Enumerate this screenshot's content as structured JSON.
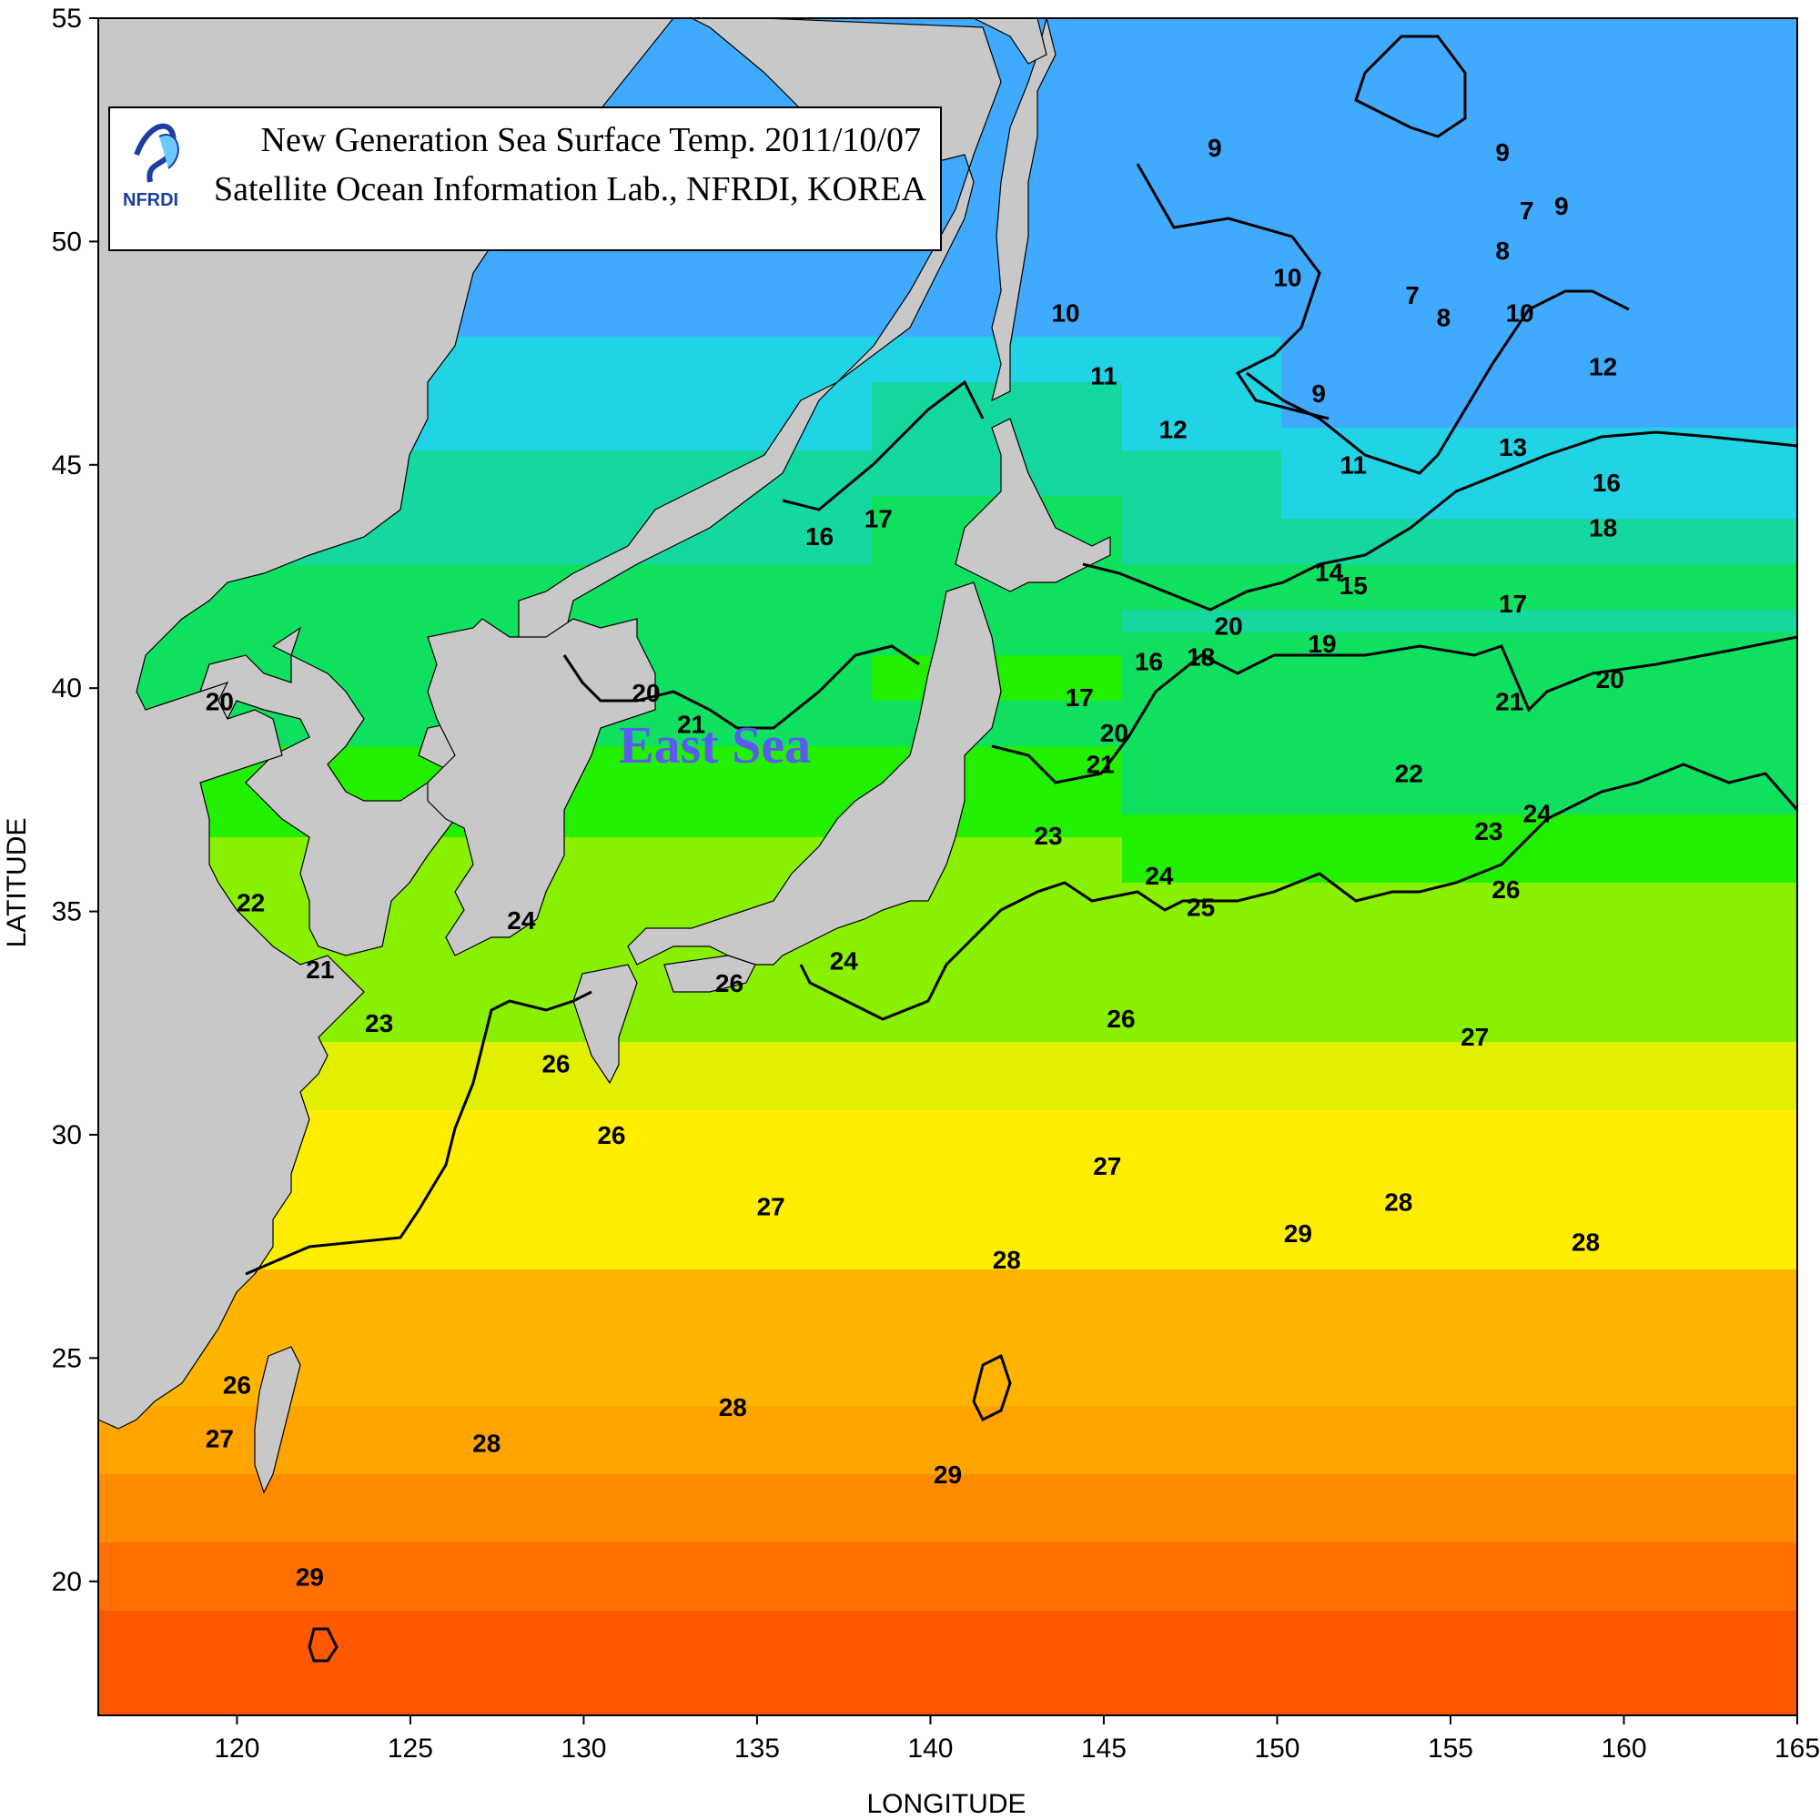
{
  "title": {
    "line1": "New Generation Sea Surface Temp. 2011/10/07",
    "line2": "Satellite Ocean Information Lab., NFRDI, KOREA",
    "logo_text": "NFRDI"
  },
  "axes": {
    "xlabel": "LONGITUDE",
    "ylabel": "LATITUDE",
    "x_ticks": [
      "120",
      "125",
      "130",
      "135",
      "140",
      "145",
      "150",
      "155",
      "160",
      "165"
    ],
    "y_ticks": [
      "55",
      "50",
      "45",
      "40",
      "35",
      "30",
      "25",
      "20"
    ],
    "x_range": [
      116,
      165
    ],
    "y_range": [
      17,
      55
    ]
  },
  "region_label": "East Sea",
  "contour_labels": [
    {
      "text": "9",
      "lon": 148.2,
      "lat": 51.9
    },
    {
      "text": "9",
      "lon": 156.5,
      "lat": 51.8
    },
    {
      "text": "7",
      "lon": 157.2,
      "lat": 50.5
    },
    {
      "text": "9",
      "lon": 158.2,
      "lat": 50.6
    },
    {
      "text": "8",
      "lon": 156.5,
      "lat": 49.6
    },
    {
      "text": "10",
      "lon": 143.9,
      "lat": 48.2
    },
    {
      "text": "10",
      "lon": 150.3,
      "lat": 49.0
    },
    {
      "text": "7",
      "lon": 153.9,
      "lat": 48.6
    },
    {
      "text": "8",
      "lon": 154.8,
      "lat": 48.1
    },
    {
      "text": "10",
      "lon": 157.0,
      "lat": 48.2
    },
    {
      "text": "11",
      "lon": 145.0,
      "lat": 46.8
    },
    {
      "text": "9",
      "lon": 151.2,
      "lat": 46.4
    },
    {
      "text": "12",
      "lon": 147.0,
      "lat": 45.6
    },
    {
      "text": "12",
      "lon": 159.4,
      "lat": 47.0
    },
    {
      "text": "11",
      "lon": 152.2,
      "lat": 44.8
    },
    {
      "text": "13",
      "lon": 156.8,
      "lat": 45.2
    },
    {
      "text": "16",
      "lon": 159.5,
      "lat": 44.4
    },
    {
      "text": "18",
      "lon": 159.4,
      "lat": 43.4
    },
    {
      "text": "16",
      "lon": 136.8,
      "lat": 43.2
    },
    {
      "text": "17",
      "lon": 138.5,
      "lat": 43.6
    },
    {
      "text": "14",
      "lon": 151.5,
      "lat": 42.4
    },
    {
      "text": "15",
      "lon": 152.2,
      "lat": 42.1
    },
    {
      "text": "17",
      "lon": 156.8,
      "lat": 41.7
    },
    {
      "text": "19",
      "lon": 151.3,
      "lat": 40.8
    },
    {
      "text": "16",
      "lon": 146.3,
      "lat": 40.4
    },
    {
      "text": "18",
      "lon": 147.8,
      "lat": 40.5
    },
    {
      "text": "17",
      "lon": 144.3,
      "lat": 39.6
    },
    {
      "text": "20",
      "lon": 148.6,
      "lat": 41.2
    },
    {
      "text": "20",
      "lon": 159.6,
      "lat": 40.0
    },
    {
      "text": "21",
      "lon": 156.7,
      "lat": 39.5
    },
    {
      "text": "20",
      "lon": 131.8,
      "lat": 39.7
    },
    {
      "text": "20",
      "lon": 145.3,
      "lat": 38.8
    },
    {
      "text": "21",
      "lon": 144.9,
      "lat": 38.1
    },
    {
      "text": "21",
      "lon": 133.1,
      "lat": 39.0
    },
    {
      "text": "22",
      "lon": 153.8,
      "lat": 37.9
    },
    {
      "text": "20",
      "lon": 119.5,
      "lat": 39.5
    },
    {
      "text": "22",
      "lon": 120.4,
      "lat": 35.0
    },
    {
      "text": "21",
      "lon": 122.4,
      "lat": 33.5
    },
    {
      "text": "23",
      "lon": 124.1,
      "lat": 32.3
    },
    {
      "text": "24",
      "lon": 128.2,
      "lat": 34.6
    },
    {
      "text": "23",
      "lon": 143.4,
      "lat": 36.5
    },
    {
      "text": "23",
      "lon": 156.1,
      "lat": 36.6
    },
    {
      "text": "24",
      "lon": 146.6,
      "lat": 35.6
    },
    {
      "text": "24",
      "lon": 157.5,
      "lat": 37.0
    },
    {
      "text": "25",
      "lon": 147.8,
      "lat": 34.9
    },
    {
      "text": "26",
      "lon": 156.6,
      "lat": 35.3
    },
    {
      "text": "24",
      "lon": 137.5,
      "lat": 33.7
    },
    {
      "text": "26",
      "lon": 134.2,
      "lat": 33.2
    },
    {
      "text": "26",
      "lon": 145.5,
      "lat": 32.4
    },
    {
      "text": "27",
      "lon": 155.7,
      "lat": 32.0
    },
    {
      "text": "26",
      "lon": 129.2,
      "lat": 31.4
    },
    {
      "text": "26",
      "lon": 130.8,
      "lat": 29.8
    },
    {
      "text": "27",
      "lon": 145.1,
      "lat": 29.1
    },
    {
      "text": "28",
      "lon": 153.5,
      "lat": 28.3
    },
    {
      "text": "27",
      "lon": 135.4,
      "lat": 28.2
    },
    {
      "text": "29",
      "lon": 150.6,
      "lat": 27.6
    },
    {
      "text": "28",
      "lon": 158.9,
      "lat": 27.4
    },
    {
      "text": "28",
      "lon": 142.2,
      "lat": 27.0
    },
    {
      "text": "26",
      "lon": 120.0,
      "lat": 24.2
    },
    {
      "text": "28",
      "lon": 134.3,
      "lat": 23.7
    },
    {
      "text": "27",
      "lon": 119.5,
      "lat": 23.0
    },
    {
      "text": "28",
      "lon": 127.2,
      "lat": 22.9
    },
    {
      "text": "29",
      "lon": 140.5,
      "lat": 22.2
    },
    {
      "text": "29",
      "lon": 122.1,
      "lat": 19.9
    }
  ],
  "colors": {
    "land": "#c8c8c8",
    "region_label": "#5b5bf0",
    "sst_scale": [
      {
        "t": 7,
        "color": "#40aaff"
      },
      {
        "t": 9,
        "color": "#20d4e6"
      },
      {
        "t": 11,
        "color": "#14d8a0"
      },
      {
        "t": 13,
        "color": "#10e060"
      },
      {
        "t": 16,
        "color": "#22f000"
      },
      {
        "t": 18,
        "color": "#88f000"
      },
      {
        "t": 21,
        "color": "#e0f000"
      },
      {
        "t": 22,
        "color": "#ffee00"
      },
      {
        "t": 24,
        "color": "#ffb400"
      },
      {
        "t": 26,
        "color": "#ffa400"
      },
      {
        "t": 27,
        "color": "#ff8c00"
      },
      {
        "t": 28,
        "color": "#ff7000"
      },
      {
        "t": 29,
        "color": "#ff5800"
      }
    ]
  }
}
